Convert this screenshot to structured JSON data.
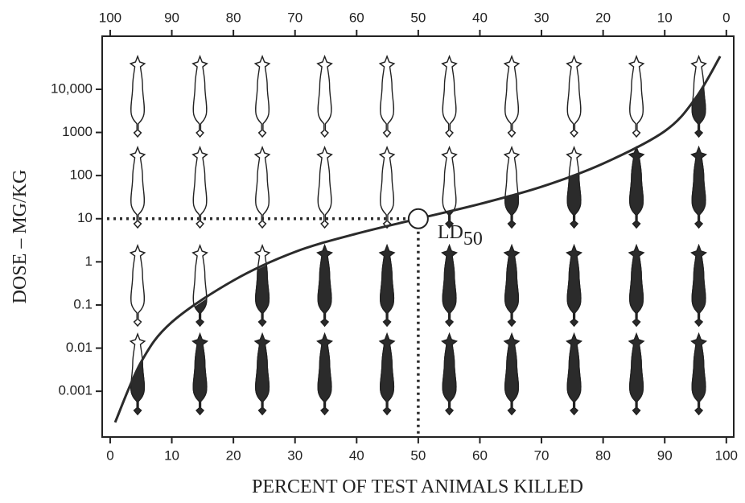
{
  "chart_data": {
    "type": "line",
    "x_label": "PERCENT OF TEST ANIMALS KILLED",
    "y_label": "DOSE – MG/KG",
    "x": [
      0.8,
      5,
      10,
      20,
      30,
      40,
      50,
      60,
      70,
      80,
      90,
      95,
      99
    ],
    "series": [
      {
        "color": "#2b2b2b",
        "values": [
          0.00019,
          0.0047,
          0.04,
          0.37,
          1.7,
          4.5,
          10,
          22,
          55,
          190,
          1070,
          6200,
          58000
        ]
      }
    ],
    "xlim": [
      -1.3,
      101.2
    ],
    "xticks": [
      0,
      10,
      20,
      30,
      40,
      50,
      60,
      70,
      80,
      90,
      100
    ],
    "x2lim": [
      101.3,
      -1.2
    ],
    "x2ticks": [
      100,
      90,
      80,
      70,
      60,
      50,
      40,
      30,
      20,
      10,
      0
    ],
    "ylim": [
      8.7e-05,
      170000
    ],
    "y_scale": "log",
    "yticks": [
      {
        "value": 10000,
        "label": "10,000"
      },
      1000,
      100,
      10,
      1,
      0.1,
      0.01,
      0.001
    ],
    "point": {
      "x": 50,
      "y": 10,
      "text": "LD",
      "subscript": "50"
    }
  }
}
